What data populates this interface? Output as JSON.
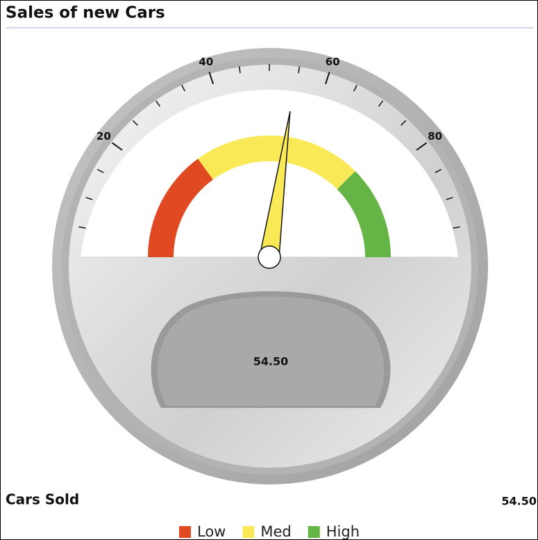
{
  "chart_data": {
    "type": "gauge",
    "title": "Sales of new Cars",
    "metric_name": "Cars Sold",
    "value": 54.5,
    "value_label": "54.50",
    "ylim": [
      0,
      100
    ],
    "yticks": [
      20,
      40,
      60,
      80
    ],
    "minor_ticks": [
      5,
      10,
      15,
      25,
      30,
      35,
      45,
      50,
      55,
      65,
      70,
      75,
      85,
      90,
      95
    ],
    "bands": [
      {
        "name": "Low",
        "from": 0,
        "to": 30,
        "color": "#e04a22"
      },
      {
        "name": "Med",
        "from": 30,
        "to": 75,
        "color": "#f9e957"
      },
      {
        "name": "High",
        "from": 75,
        "to": 100,
        "color": "#64b446"
      }
    ]
  }
}
